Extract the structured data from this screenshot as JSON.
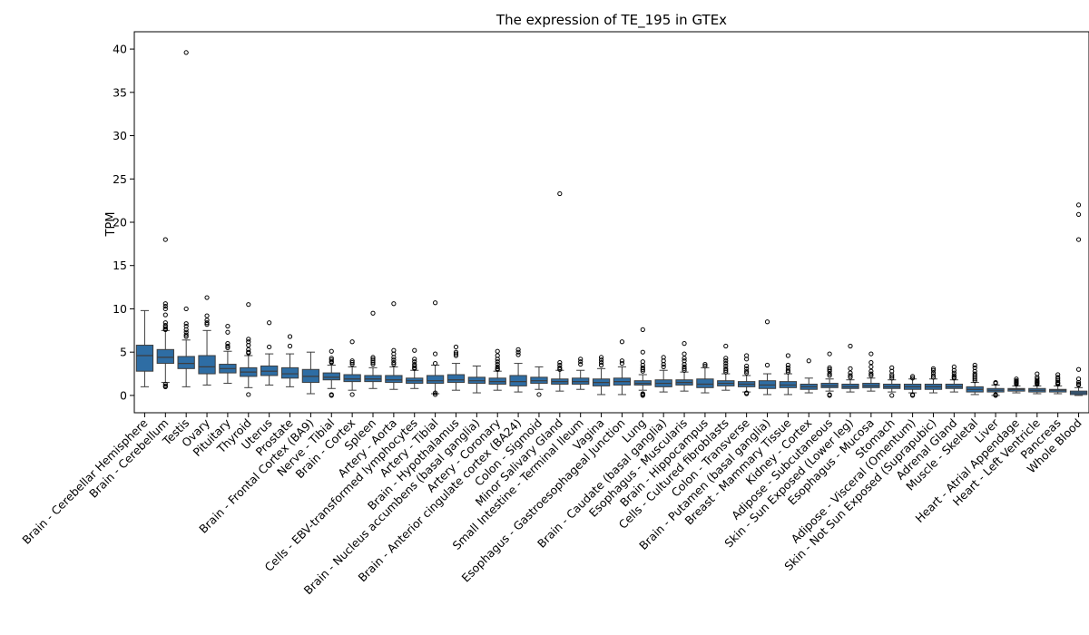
{
  "chart_data": {
    "type": "box",
    "title": "The expression of TE_195 in GTEx",
    "xlabel": "",
    "ylabel": "TPM",
    "ylim": [
      -2,
      42
    ],
    "yticks": [
      0,
      5,
      10,
      15,
      20,
      25,
      30,
      35,
      40
    ],
    "grid": false,
    "color": "#2e6da4",
    "categories": [
      "Brain - Cerebellar Hemisphere",
      "Brain - Cerebellum",
      "Testis",
      "Ovary",
      "Pituitary",
      "Thyroid",
      "Uterus",
      "Prostate",
      "Brain - Frontal Cortex (BA9)",
      "Nerve - Tibial",
      "Brain - Cortex",
      "Spleen",
      "Artery - Aorta",
      "Cells - EBV-transformed lymphocytes",
      "Artery - Tibial",
      "Brain - Hypothalamus",
      "Brain - Nucleus accumbens (basal ganglia)",
      "Artery - Coronary",
      "Brain - Anterior cingulate cortex (BA24)",
      "Colon - Sigmoid",
      "Minor Salivary Gland",
      "Small Intestine - Terminal Ileum",
      "Vagina",
      "Esophagus - Gastroesophageal Junction",
      "Lung",
      "Brain - Caudate (basal ganglia)",
      "Esophagus - Muscularis",
      "Brain - Hippocampus",
      "Cells - Cultured fibroblasts",
      "Colon - Transverse",
      "Brain - Putamen (basal ganglia)",
      "Breast - Mammary Tissue",
      "Kidney - Cortex",
      "Adipose - Subcutaneous",
      "Skin - Sun Exposed (Lower leg)",
      "Esophagus - Mucosa",
      "Stomach",
      "Adipose - Visceral (Omentum)",
      "Skin - Not Sun Exposed (Suprapubic)",
      "Adrenal Gland",
      "Muscle - Skeletal",
      "Liver",
      "Heart - Atrial Appendage",
      "Heart - Left Ventricle",
      "Pancreas",
      "Whole Blood"
    ],
    "boxes": [
      {
        "whislo": 1.0,
        "q1": 2.8,
        "med": 4.6,
        "q3": 5.8,
        "whishi": 9.8,
        "fliers": []
      },
      {
        "whislo": 1.5,
        "q1": 3.7,
        "med": 4.4,
        "q3": 5.3,
        "whishi": 7.5,
        "fliers": [
          18.0,
          10.6,
          10.3,
          10.0,
          9.3,
          8.4,
          8.1,
          7.9,
          7.7,
          7.6,
          1.3,
          1.1,
          1.0
        ]
      },
      {
        "whislo": 1.0,
        "q1": 3.1,
        "med": 3.7,
        "q3": 4.5,
        "whishi": 6.4,
        "fliers": [
          39.6,
          10.0,
          8.3,
          8.0,
          7.6,
          7.3,
          7.0,
          6.8
        ]
      },
      {
        "whislo": 1.2,
        "q1": 2.5,
        "med": 3.3,
        "q3": 4.6,
        "whishi": 7.5,
        "fliers": [
          11.3,
          9.2,
          8.7,
          8.4,
          8.2
        ]
      },
      {
        "whislo": 1.4,
        "q1": 2.6,
        "med": 3.1,
        "q3": 3.6,
        "whishi": 5.1,
        "fliers": [
          8.0,
          7.3,
          6.0,
          5.7,
          5.5
        ]
      },
      {
        "whislo": 0.9,
        "q1": 2.2,
        "med": 2.7,
        "q3": 3.2,
        "whishi": 4.6,
        "fliers": [
          10.5,
          6.5,
          6.2,
          5.8,
          5.3,
          5.0,
          4.9,
          0.1
        ]
      },
      {
        "whislo": 1.2,
        "q1": 2.3,
        "med": 2.8,
        "q3": 3.4,
        "whishi": 4.8,
        "fliers": [
          8.4,
          5.6
        ]
      },
      {
        "whislo": 1.0,
        "q1": 2.0,
        "med": 2.5,
        "q3": 3.2,
        "whishi": 4.8,
        "fliers": [
          6.8,
          5.7
        ]
      },
      {
        "whislo": 0.2,
        "q1": 1.5,
        "med": 2.2,
        "q3": 3.0,
        "whishi": 5.0,
        "fliers": []
      },
      {
        "whislo": 0.8,
        "q1": 1.8,
        "med": 2.1,
        "q3": 2.6,
        "whishi": 3.5,
        "fliers": [
          5.1,
          4.3,
          4.1,
          3.9,
          3.8,
          0.1,
          0.0
        ]
      },
      {
        "whislo": 0.6,
        "q1": 1.6,
        "med": 1.9,
        "q3": 2.4,
        "whishi": 3.3,
        "fliers": [
          6.2,
          4.0,
          3.8,
          3.6,
          0.1
        ]
      },
      {
        "whislo": 0.8,
        "q1": 1.6,
        "med": 1.9,
        "q3": 2.3,
        "whishi": 3.2,
        "fliers": [
          9.5,
          4.4,
          4.2,
          4.0,
          3.8,
          3.6
        ]
      },
      {
        "whislo": 0.7,
        "q1": 1.5,
        "med": 1.8,
        "q3": 2.3,
        "whishi": 3.3,
        "fliers": [
          10.6,
          5.2,
          4.8,
          4.4,
          4.1,
          3.8,
          3.6
        ]
      },
      {
        "whislo": 0.8,
        "q1": 1.4,
        "med": 1.7,
        "q3": 2.0,
        "whishi": 2.9,
        "fliers": [
          5.2,
          4.2,
          3.9,
          3.6,
          3.4,
          3.2,
          3.1
        ]
      },
      {
        "whislo": 0.2,
        "q1": 1.4,
        "med": 1.7,
        "q3": 2.3,
        "whishi": 3.5,
        "fliers": [
          10.7,
          4.8,
          3.7,
          0.3,
          0.1
        ]
      },
      {
        "whislo": 0.6,
        "q1": 1.5,
        "med": 1.8,
        "q3": 2.4,
        "whishi": 3.7,
        "fliers": [
          5.6,
          5.0,
          4.8,
          4.6
        ]
      },
      {
        "whislo": 0.3,
        "q1": 1.4,
        "med": 1.7,
        "q3": 2.1,
        "whishi": 3.4,
        "fliers": []
      },
      {
        "whislo": 0.6,
        "q1": 1.3,
        "med": 1.6,
        "q3": 2.0,
        "whishi": 2.8,
        "fliers": [
          5.1,
          4.6,
          4.2,
          3.9,
          3.6,
          3.3,
          3.1,
          3.0
        ]
      },
      {
        "whislo": 0.4,
        "q1": 1.1,
        "med": 1.6,
        "q3": 2.3,
        "whishi": 3.7,
        "fliers": [
          5.3,
          5.0,
          4.7
        ]
      },
      {
        "whislo": 0.7,
        "q1": 1.4,
        "med": 1.7,
        "q3": 2.1,
        "whishi": 3.3,
        "fliers": [
          0.1
        ]
      },
      {
        "whislo": 0.5,
        "q1": 1.3,
        "med": 1.6,
        "q3": 1.9,
        "whishi": 2.9,
        "fliers": [
          23.3,
          3.8,
          3.5,
          3.2,
          3.0
        ]
      },
      {
        "whislo": 0.7,
        "q1": 1.3,
        "med": 1.6,
        "q3": 2.0,
        "whishi": 2.9,
        "fliers": [
          4.2,
          3.9,
          3.6
        ]
      },
      {
        "whislo": 0.1,
        "q1": 1.1,
        "med": 1.5,
        "q3": 1.9,
        "whishi": 3.1,
        "fliers": [
          4.4,
          4.1,
          3.8,
          3.5
        ]
      },
      {
        "whislo": 0.1,
        "q1": 1.2,
        "med": 1.6,
        "q3": 2.0,
        "whishi": 3.3,
        "fliers": [
          6.2,
          4.0,
          3.7
        ]
      },
      {
        "whislo": 0.6,
        "q1": 1.2,
        "med": 1.4,
        "q3": 1.7,
        "whishi": 2.4,
        "fliers": [
          7.6,
          5.0,
          3.9,
          3.5,
          3.2,
          3.0,
          2.8,
          0.2,
          0.1,
          0.0
        ]
      },
      {
        "whislo": 0.4,
        "q1": 1.0,
        "med": 1.4,
        "q3": 1.8,
        "whishi": 2.9,
        "fliers": [
          4.4,
          4.0,
          3.6,
          3.3
        ]
      },
      {
        "whislo": 0.5,
        "q1": 1.2,
        "med": 1.5,
        "q3": 1.8,
        "whishi": 2.7,
        "fliers": [
          6.0,
          4.8,
          4.3,
          4.0,
          3.6,
          3.3,
          3.1,
          2.9
        ]
      },
      {
        "whislo": 0.3,
        "q1": 0.9,
        "med": 1.3,
        "q3": 1.9,
        "whishi": 3.2,
        "fliers": [
          3.6,
          3.4
        ]
      },
      {
        "whislo": 0.6,
        "q1": 1.1,
        "med": 1.4,
        "q3": 1.7,
        "whishi": 2.5,
        "fliers": [
          5.7,
          4.3,
          4.0,
          3.7,
          3.4,
          3.1,
          2.9,
          2.7
        ]
      },
      {
        "whislo": 0.4,
        "q1": 1.0,
        "med": 1.3,
        "q3": 1.6,
        "whishi": 2.3,
        "fliers": [
          4.6,
          4.2,
          3.4,
          3.1,
          2.8,
          2.6,
          0.3,
          0.2
        ]
      },
      {
        "whislo": 0.1,
        "q1": 0.8,
        "med": 1.2,
        "q3": 1.7,
        "whishi": 2.5,
        "fliers": [
          8.5,
          3.5
        ]
      },
      {
        "whislo": 0.1,
        "q1": 0.9,
        "med": 1.2,
        "q3": 1.6,
        "whishi": 2.5,
        "fliers": [
          4.6,
          3.5,
          3.2,
          2.9,
          2.7
        ]
      },
      {
        "whislo": 0.3,
        "q1": 0.7,
        "med": 1.0,
        "q3": 1.3,
        "whishi": 2.0,
        "fliers": [
          4.0
        ]
      },
      {
        "whislo": 0.5,
        "q1": 0.9,
        "med": 1.1,
        "q3": 1.4,
        "whishi": 1.9,
        "fliers": [
          4.8,
          3.2,
          3.0,
          2.8,
          2.5,
          2.3,
          0.1,
          0.0
        ]
      },
      {
        "whislo": 0.4,
        "q1": 0.8,
        "med": 1.0,
        "q3": 1.3,
        "whishi": 1.8,
        "fliers": [
          5.7,
          3.1,
          2.6,
          2.3,
          2.1
        ]
      },
      {
        "whislo": 0.5,
        "q1": 0.9,
        "med": 1.1,
        "q3": 1.4,
        "whishi": 2.0,
        "fliers": [
          4.8,
          3.8,
          3.3,
          2.8,
          2.5,
          2.3
        ]
      },
      {
        "whislo": 0.4,
        "q1": 0.8,
        "med": 1.0,
        "q3": 1.3,
        "whishi": 1.8,
        "fliers": [
          3.2,
          2.8,
          2.4,
          2.2,
          2.0,
          0.0
        ]
      },
      {
        "whislo": 0.3,
        "q1": 0.7,
        "med": 1.0,
        "q3": 1.3,
        "whishi": 1.9,
        "fliers": [
          2.2,
          2.0,
          0.1,
          0.0
        ]
      },
      {
        "whislo": 0.3,
        "q1": 0.7,
        "med": 1.0,
        "q3": 1.3,
        "whishi": 1.9,
        "fliers": [
          3.1,
          2.9,
          2.6,
          2.3,
          2.1
        ]
      },
      {
        "whislo": 0.4,
        "q1": 0.8,
        "med": 1.0,
        "q3": 1.3,
        "whishi": 1.8,
        "fliers": [
          3.3,
          2.9,
          2.6,
          2.3,
          2.1,
          2.0
        ]
      },
      {
        "whislo": 0.1,
        "q1": 0.4,
        "med": 0.7,
        "q3": 1.0,
        "whishi": 1.5,
        "fliers": [
          3.5,
          3.2,
          2.8,
          2.5,
          2.3,
          2.1,
          1.9,
          1.7
        ]
      },
      {
        "whislo": 0.0,
        "q1": 0.4,
        "med": 0.6,
        "q3": 0.8,
        "whishi": 1.2,
        "fliers": [
          1.5,
          1.4,
          0.1,
          0.0
        ]
      },
      {
        "whislo": 0.3,
        "q1": 0.5,
        "med": 0.7,
        "q3": 0.8,
        "whishi": 1.1,
        "fliers": [
          1.9,
          1.7,
          1.6,
          1.5,
          1.4,
          1.3
        ]
      },
      {
        "whislo": 0.2,
        "q1": 0.4,
        "med": 0.6,
        "q3": 0.8,
        "whishi": 1.1,
        "fliers": [
          2.5,
          2.1,
          1.9,
          1.7,
          1.6,
          1.5,
          1.4,
          1.3
        ]
      },
      {
        "whislo": 0.2,
        "q1": 0.4,
        "med": 0.6,
        "q3": 0.7,
        "whishi": 1.1,
        "fliers": [
          2.4,
          2.1,
          1.9,
          1.7,
          1.5,
          1.4,
          1.3
        ]
      },
      {
        "whislo": 0.0,
        "q1": 0.1,
        "med": 0.3,
        "q3": 0.5,
        "whishi": 0.9,
        "fliers": [
          22.0,
          20.9,
          18.0,
          3.0,
          1.9,
          1.5,
          1.3,
          1.2
        ]
      }
    ]
  }
}
